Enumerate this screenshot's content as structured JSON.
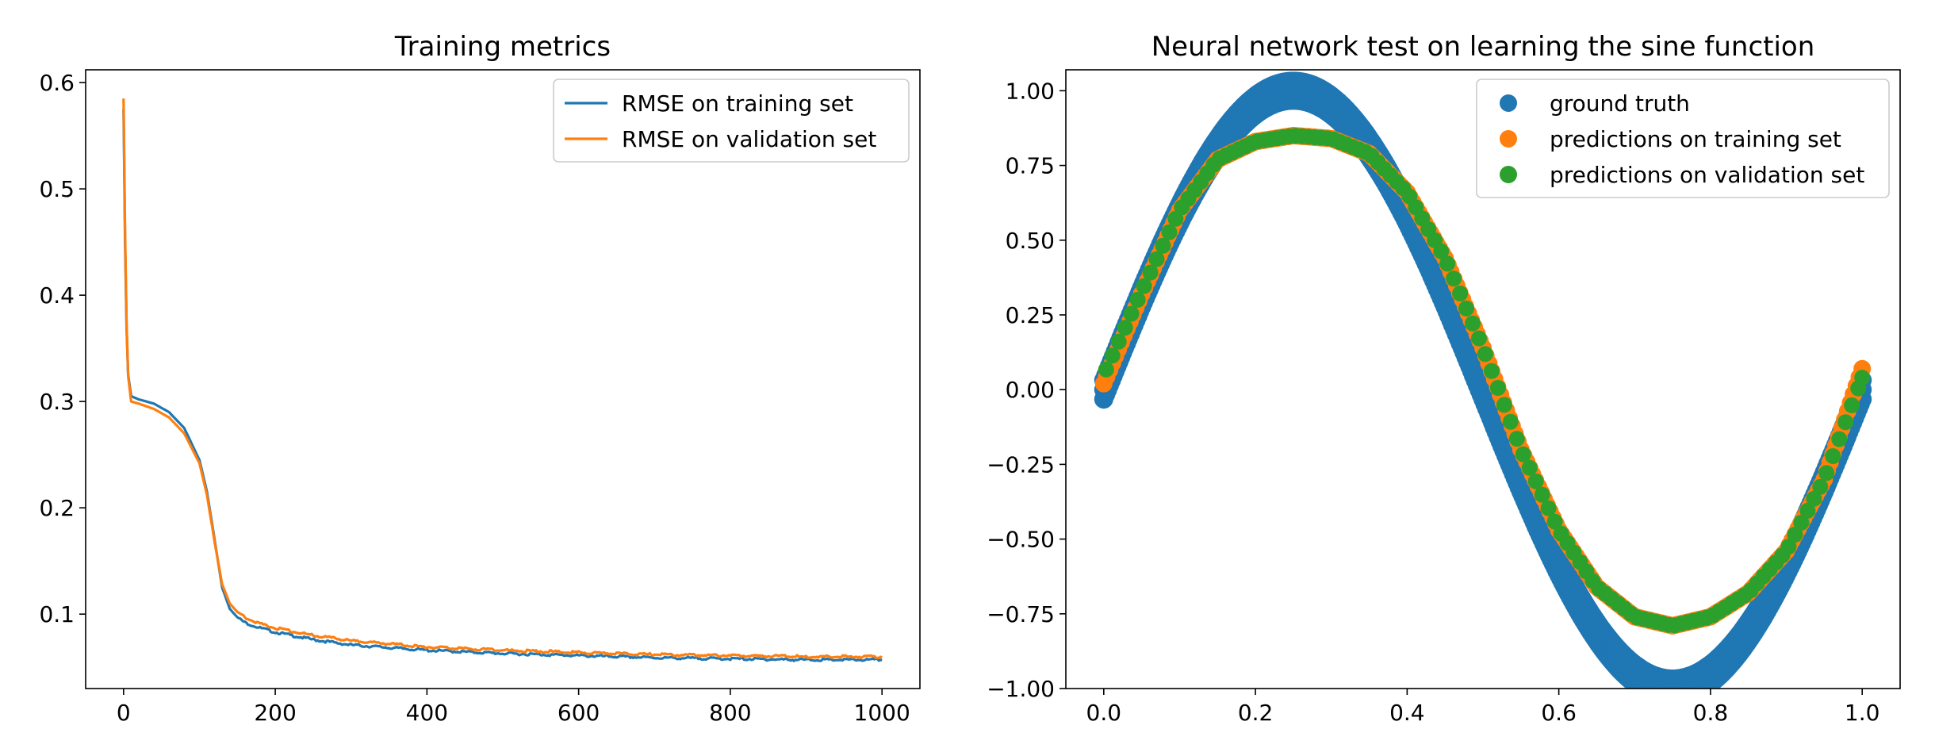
{
  "chart_data": [
    {
      "type": "line",
      "title": "Training metrics",
      "xlabel": "",
      "ylabel": "",
      "xlim": [
        -50,
        1050
      ],
      "ylim": [
        0.03,
        0.612
      ],
      "xticks": [
        0,
        200,
        400,
        600,
        800,
        1000
      ],
      "xtick_labels": [
        "0",
        "200",
        "400",
        "600",
        "800",
        "1000"
      ],
      "yticks": [
        0.1,
        0.2,
        0.3,
        0.4,
        0.5,
        0.6
      ],
      "ytick_labels": [
        "0.1",
        "0.2",
        "0.3",
        "0.4",
        "0.5",
        "0.6"
      ],
      "grid": false,
      "legend": "top-right",
      "series": [
        {
          "name": "RMSE on training set",
          "color": "#1f77b4",
          "x": [
            0,
            2,
            5,
            10,
            20,
            40,
            60,
            80,
            100,
            110,
            120,
            130,
            140,
            150,
            160,
            180,
            200,
            250,
            300,
            400,
            500,
            600,
            700,
            800,
            900,
            1000
          ],
          "y": [
            0.575,
            0.45,
            0.33,
            0.305,
            0.302,
            0.298,
            0.29,
            0.275,
            0.245,
            0.215,
            0.17,
            0.125,
            0.105,
            0.097,
            0.092,
            0.087,
            0.083,
            0.076,
            0.071,
            0.066,
            0.063,
            0.061,
            0.059,
            0.058,
            0.057,
            0.057
          ]
        },
        {
          "name": "RMSE on validation set",
          "color": "#ff7f0e",
          "x": [
            0,
            2,
            5,
            10,
            20,
            40,
            60,
            80,
            100,
            110,
            120,
            130,
            140,
            150,
            160,
            180,
            200,
            250,
            300,
            400,
            500,
            600,
            700,
            800,
            900,
            1000
          ],
          "y": [
            0.585,
            0.46,
            0.33,
            0.3,
            0.298,
            0.293,
            0.285,
            0.27,
            0.242,
            0.212,
            0.168,
            0.128,
            0.11,
            0.102,
            0.097,
            0.091,
            0.087,
            0.08,
            0.075,
            0.069,
            0.066,
            0.064,
            0.062,
            0.061,
            0.06,
            0.06
          ]
        }
      ]
    },
    {
      "type": "scatter",
      "title": "Neural network test on learning the sine function",
      "xlabel": "",
      "ylabel": "",
      "xlim": [
        -0.05,
        1.05
      ],
      "ylim": [
        -1.0,
        1.07
      ],
      "xticks": [
        0.0,
        0.2,
        0.4,
        0.6,
        0.8,
        1.0
      ],
      "xtick_labels": [
        "0.0",
        "0.2",
        "0.4",
        "0.6",
        "0.8",
        "1.0"
      ],
      "yticks": [
        -1.0,
        -0.75,
        -0.5,
        -0.25,
        0.0,
        0.25,
        0.5,
        0.75,
        1.0
      ],
      "ytick_labels": [
        "−1.00",
        "−0.75",
        "−0.50",
        "−0.25",
        "0.00",
        "0.25",
        "0.50",
        "0.75",
        "1.00"
      ],
      "grid": false,
      "legend": "top-right",
      "series": [
        {
          "name": "ground truth",
          "color": "#1f77b4",
          "x": [
            0.0,
            0.05,
            0.1,
            0.15,
            0.2,
            0.25,
            0.3,
            0.35,
            0.4,
            0.45,
            0.5,
            0.55,
            0.6,
            0.65,
            0.7,
            0.75,
            0.8,
            0.85,
            0.9,
            0.95,
            1.0
          ],
          "y": [
            0.0,
            0.31,
            0.59,
            0.81,
            0.95,
            1.0,
            0.95,
            0.81,
            0.59,
            0.31,
            0.0,
            -0.31,
            -0.59,
            -0.81,
            -0.95,
            -1.0,
            -0.95,
            -0.81,
            -0.59,
            -0.31,
            0.0
          ]
        },
        {
          "name": "predictions on training set",
          "color": "#ff7f0e",
          "x": [
            0.0,
            0.05,
            0.1,
            0.15,
            0.2,
            0.25,
            0.3,
            0.35,
            0.4,
            0.45,
            0.5,
            0.55,
            0.6,
            0.65,
            0.7,
            0.75,
            0.8,
            0.85,
            0.9,
            0.95,
            1.0
          ],
          "y": [
            0.02,
            0.32,
            0.6,
            0.77,
            0.83,
            0.85,
            0.84,
            0.79,
            0.66,
            0.44,
            0.14,
            -0.2,
            -0.47,
            -0.66,
            -0.76,
            -0.79,
            -0.76,
            -0.68,
            -0.54,
            -0.3,
            0.07
          ]
        },
        {
          "name": "predictions on validation set",
          "color": "#2ca02c",
          "x": [
            0.0,
            0.05,
            0.1,
            0.15,
            0.2,
            0.25,
            0.3,
            0.35,
            0.4,
            0.45,
            0.5,
            0.55,
            0.6,
            0.65,
            0.7,
            0.75,
            0.8,
            0.85,
            0.9,
            0.95,
            1.0
          ],
          "y": [
            0.05,
            0.33,
            0.6,
            0.77,
            0.83,
            0.85,
            0.84,
            0.79,
            0.66,
            0.44,
            0.14,
            -0.2,
            -0.47,
            -0.66,
            -0.76,
            -0.79,
            -0.76,
            -0.68,
            -0.54,
            -0.3,
            0.04
          ]
        }
      ]
    }
  ]
}
